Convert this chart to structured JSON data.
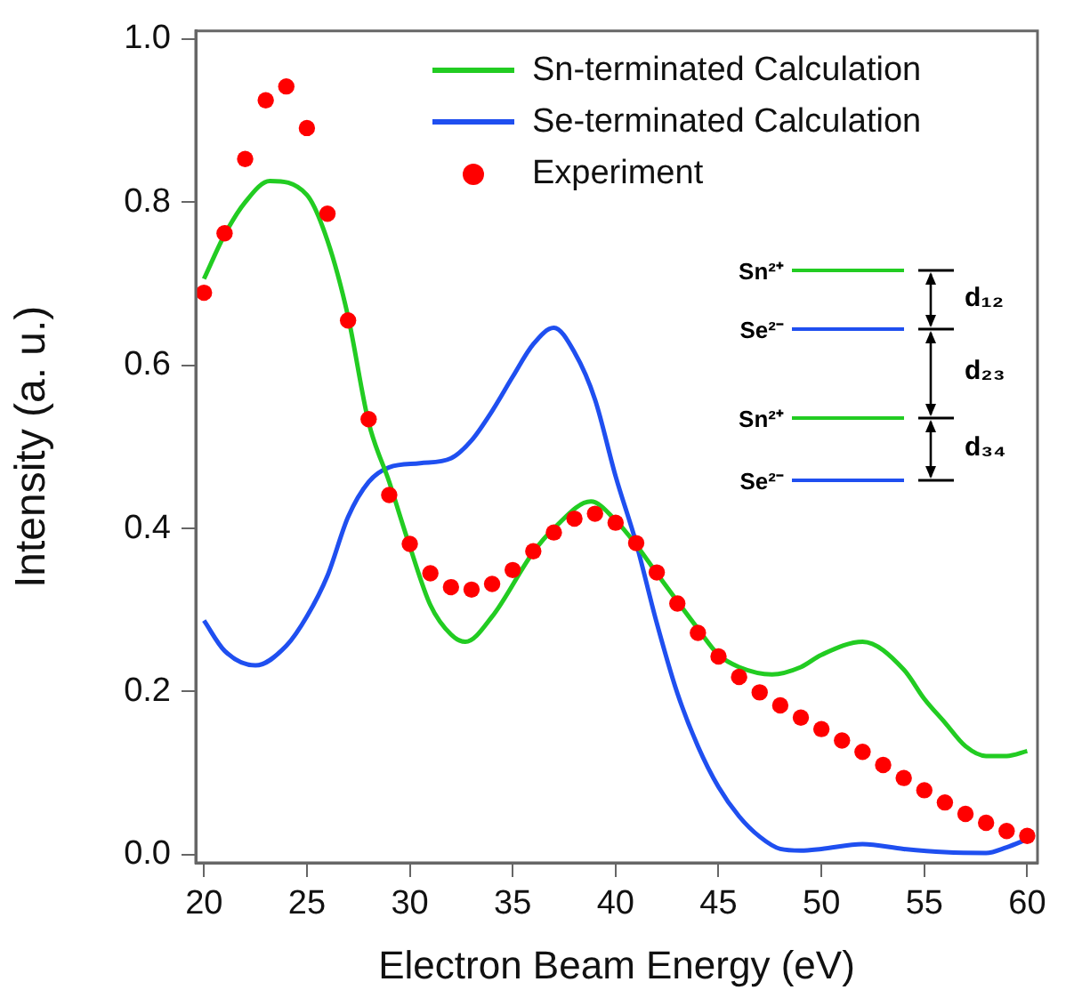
{
  "chart_data": {
    "type": "line",
    "xlabel": "Electron Beam Energy (eV)",
    "ylabel": "Intensity (a. u.)",
    "xlim": [
      19.6,
      60.5
    ],
    "xticks": [
      20,
      25,
      30,
      35,
      40,
      45,
      50,
      55,
      60
    ],
    "ylim": [
      -0.01,
      1.01
    ],
    "yticks": [
      {
        "value": 0,
        "label": "0.0"
      },
      {
        "value": 0.2,
        "label": "0.2"
      },
      {
        "value": 0.4,
        "label": "0.4"
      },
      {
        "value": 0.6,
        "label": "0.6"
      },
      {
        "value": 0.8,
        "label": "0.8"
      },
      {
        "value": 1,
        "label": "1.0"
      }
    ],
    "legend": "top right",
    "series": [
      {
        "name": "Sn-terminated Calculation",
        "color": "#22cc22",
        "x": [
          20,
          21,
          22,
          23.2,
          25,
          26,
          27,
          28,
          29,
          30,
          31,
          32,
          32.7,
          34,
          36,
          37,
          38.8,
          40,
          41,
          42,
          44,
          45,
          46,
          47.6,
          49,
          50,
          52,
          54,
          55,
          56,
          57,
          58,
          59,
          60
        ],
        "values": [
          0.706,
          0.76,
          0.8,
          0.826,
          0.809,
          0.753,
          0.66,
          0.53,
          0.457,
          0.378,
          0.306,
          0.27,
          0.261,
          0.292,
          0.371,
          0.4,
          0.433,
          0.41,
          0.38,
          0.345,
          0.277,
          0.245,
          0.23,
          0.221,
          0.23,
          0.245,
          0.261,
          0.227,
          0.191,
          0.162,
          0.133,
          0.121,
          0.121,
          0.127
        ]
      },
      {
        "name": "Se-terminated Calculation",
        "color": "#1f4ff0",
        "x": [
          20,
          21,
          22.5,
          24,
          25,
          26,
          27,
          28,
          29,
          30.5,
          32,
          33,
          34,
          35,
          36,
          37,
          38,
          39,
          40,
          41,
          42,
          43,
          44,
          45,
          46,
          47,
          48,
          49,
          50,
          52,
          54,
          56,
          58,
          59,
          60
        ],
        "values": [
          0.287,
          0.25,
          0.232,
          0.256,
          0.292,
          0.342,
          0.414,
          0.457,
          0.475,
          0.48,
          0.486,
          0.508,
          0.544,
          0.586,
          0.626,
          0.646,
          0.616,
          0.558,
          0.464,
          0.382,
          0.284,
          0.198,
          0.133,
          0.083,
          0.047,
          0.022,
          0.007,
          0.005,
          0.007,
          0.013,
          0.007,
          0.003,
          0.002,
          0.009,
          0.019
        ]
      },
      {
        "type": "scatter",
        "name": "Experiment",
        "color": "#ff0000",
        "marker": "circle",
        "x": [
          20,
          21,
          22,
          23,
          24,
          25,
          26,
          27,
          28,
          29,
          30,
          31,
          32,
          33,
          34,
          35,
          36,
          37,
          38,
          39,
          40,
          41,
          42,
          43,
          44,
          45,
          46,
          47,
          48,
          49,
          50,
          51,
          52,
          53,
          54,
          55,
          56,
          57,
          58,
          59,
          60
        ],
        "values": [
          0.689,
          0.762,
          0.853,
          0.925,
          0.942,
          0.891,
          0.786,
          0.655,
          0.534,
          0.441,
          0.381,
          0.345,
          0.328,
          0.325,
          0.332,
          0.349,
          0.372,
          0.395,
          0.412,
          0.418,
          0.407,
          0.382,
          0.346,
          0.308,
          0.272,
          0.243,
          0.218,
          0.199,
          0.183,
          0.168,
          0.154,
          0.14,
          0.126,
          0.11,
          0.094,
          0.079,
          0.064,
          0.05,
          0.039,
          0.029,
          0.023
        ]
      }
    ],
    "annotations": [
      "Sn²⁺",
      "Se²⁻",
      "Sn²⁺",
      "Se²⁻",
      "d₁₂",
      "d₂₃",
      "d₃₄"
    ]
  }
}
